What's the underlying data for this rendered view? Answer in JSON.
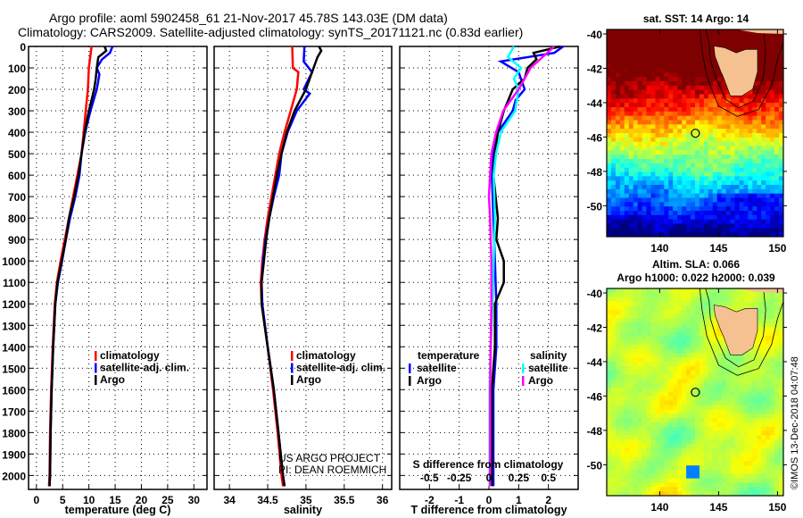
{
  "title_line1": "Argo profile: aoml 5902458_61 21-Nov-2017 45.78S 143.03E (DM data)",
  "title_line2": "Climatology: CARS2009. Satellite-adjusted climatology: synTS_20171121.nc (0.83d earlier)",
  "credit": "©IMOS 13-Dec-2018 04:07:48",
  "project_line1": "US ARGO PROJECT",
  "project_line2": "PI: DEAN ROEMMICH",
  "colors": {
    "climatology": "#ff0000",
    "satellite": "#0000ff",
    "argo": "#000000",
    "sal_satellite": "#00ffff",
    "sal_argo": "#ff00ff",
    "land": "#f5c190"
  },
  "chart_data": [
    {
      "type": "line",
      "name": "temperature",
      "xlabel": "temperature (deg C)",
      "ylabel": "",
      "xlim": [
        -1.5,
        32.5
      ],
      "ylim": [
        2065,
        0
      ],
      "xticks": [
        0,
        5,
        10,
        15,
        20,
        25,
        30
      ],
      "yticks": [
        0,
        100,
        200,
        300,
        400,
        500,
        600,
        700,
        800,
        900,
        1000,
        1100,
        1200,
        1300,
        1400,
        1500,
        1600,
        1700,
        1800,
        1900,
        2000
      ],
      "grid": true,
      "legend": [
        "climatology",
        "satellite-adj. clim.",
        "Argo"
      ],
      "series": [
        {
          "name": "climatology",
          "color": "#ff0000",
          "depth": [
            0,
            100,
            200,
            300,
            400,
            500,
            600,
            700,
            800,
            900,
            1000,
            1100,
            1200,
            1400,
            1600,
            1800,
            2000,
            2050
          ],
          "values": [
            10.5,
            10.0,
            9.8,
            9.4,
            9.0,
            8.6,
            7.8,
            7.0,
            6.2,
            5.4,
            4.6,
            3.9,
            3.5,
            3.1,
            2.8,
            2.6,
            2.5,
            2.4
          ]
        },
        {
          "name": "satellite-adj. clim.",
          "color": "#0000ff",
          "depth": [
            0,
            30,
            60,
            100,
            130,
            200,
            300,
            400,
            500,
            600,
            700,
            800,
            900,
            1000,
            1100,
            1200,
            1400,
            1600,
            1800,
            2000,
            2050
          ],
          "values": [
            14.5,
            14.0,
            12.5,
            11.5,
            12.0,
            11.5,
            10.3,
            9.3,
            8.6,
            8.2,
            7.4,
            6.4,
            5.6,
            4.9,
            4.1,
            3.6,
            3.2,
            2.9,
            2.7,
            2.6,
            2.5
          ]
        },
        {
          "name": "Argo",
          "color": "#000000",
          "depth": [
            0,
            20,
            50,
            100,
            150,
            200,
            250,
            300,
            400,
            500,
            600,
            700,
            800,
            900,
            1000,
            1100,
            1200,
            1400,
            1600,
            1800,
            2000,
            2050
          ],
          "values": [
            13.0,
            13.3,
            11.8,
            11.5,
            11.3,
            11.0,
            10.5,
            10.0,
            9.2,
            8.6,
            8.0,
            7.2,
            6.2,
            5.6,
            4.8,
            4.0,
            3.6,
            3.2,
            2.9,
            2.7,
            2.6,
            2.5
          ]
        }
      ]
    },
    {
      "type": "line",
      "name": "salinity",
      "xlabel": "salinity",
      "xlim": [
        33.8,
        36.12
      ],
      "ylim": [
        2065,
        0
      ],
      "xticks": [
        34,
        34.5,
        35,
        35.5,
        36
      ],
      "grid": true,
      "legend": [
        "climatology",
        "satellite-adj. clim.",
        "Argo"
      ],
      "series": [
        {
          "name": "climatology",
          "color": "#ff0000",
          "depth": [
            0,
            100,
            120,
            200,
            300,
            400,
            500,
            600,
            700,
            800,
            900,
            1000,
            1100,
            1200,
            1400,
            1600,
            1800,
            2000,
            2050
          ],
          "values": [
            34.82,
            34.83,
            34.9,
            34.88,
            34.8,
            34.72,
            34.65,
            34.6,
            34.55,
            34.5,
            34.46,
            34.43,
            34.41,
            34.42,
            34.5,
            34.57,
            34.63,
            34.68,
            34.7
          ]
        },
        {
          "name": "satellite-adj. clim.",
          "color": "#0000ff",
          "depth": [
            0,
            70,
            120,
            200,
            220,
            300,
            400,
            500,
            600,
            700,
            800,
            900,
            1000,
            1100,
            1200,
            1400,
            1600,
            1800,
            2000,
            2050
          ],
          "values": [
            34.98,
            34.97,
            35.08,
            34.97,
            35.05,
            34.88,
            34.76,
            34.68,
            34.65,
            34.58,
            34.52,
            34.47,
            34.44,
            34.42,
            34.43,
            34.5,
            34.58,
            34.64,
            34.7,
            34.72
          ]
        },
        {
          "name": "Argo",
          "color": "#000000",
          "depth": [
            0,
            20,
            50,
            100,
            150,
            200,
            300,
            400,
            500,
            600,
            700,
            800,
            900,
            1000,
            1100,
            1200,
            1400,
            1600,
            1800,
            2000,
            2050
          ],
          "values": [
            35.17,
            35.2,
            35.15,
            35.1,
            35.05,
            35.0,
            34.85,
            34.75,
            34.68,
            34.62,
            34.57,
            34.52,
            34.48,
            34.45,
            34.42,
            34.42,
            34.5,
            34.58,
            34.64,
            34.7,
            34.72
          ]
        }
      ]
    },
    {
      "type": "line",
      "name": "difference",
      "xlabel": "T difference from climatology",
      "x2label": "S difference from climatology",
      "xlim": [
        -3,
        3
      ],
      "x2lim": [
        -0.75,
        0.75
      ],
      "ylim": [
        2065,
        0
      ],
      "xticks": [
        -2,
        -1,
        0,
        1,
        2
      ],
      "x2ticks": [
        "-0.5",
        "-0.25",
        "0",
        "0.25",
        "0.5"
      ],
      "x2tickvals": [
        -0.5,
        -0.25,
        0,
        0.25,
        0.5
      ],
      "grid": true,
      "legend_temperature": {
        "title": "temperature",
        "items": [
          "satellite",
          "Argo"
        ]
      },
      "legend_salinity": {
        "title": "salinity",
        "items": [
          "satellite",
          "Argo"
        ]
      },
      "series": [
        {
          "name": "temperature satellite",
          "axis": "T",
          "color": "#0000ff",
          "depth": [
            0,
            30,
            70,
            120,
            200,
            250,
            300,
            400,
            500,
            600,
            800,
            1000,
            1200,
            1400,
            1600,
            2000,
            2050
          ],
          "values": [
            2.5,
            2.2,
            0.4,
            1.0,
            1.2,
            0.9,
            0.8,
            0.3,
            0.15,
            0.1,
            0.15,
            0.2,
            0.25,
            0.25,
            0.15,
            0.15,
            0.15
          ]
        },
        {
          "name": "temperature Argo",
          "axis": "T",
          "color": "#000000",
          "depth": [
            0,
            30,
            60,
            100,
            150,
            200,
            300,
            400,
            500,
            600,
            800,
            900,
            1000,
            1100,
            1200,
            1400,
            1600,
            2000,
            2050
          ],
          "values": [
            2.4,
            1.5,
            1.6,
            1.3,
            1.2,
            0.8,
            0.5,
            0.3,
            0.2,
            0.15,
            0.3,
            0.25,
            0.5,
            0.5,
            0.2,
            0.2,
            0.1,
            0.1,
            0.1
          ]
        },
        {
          "name": "salinity satellite",
          "axis": "S",
          "color": "#00ffff",
          "depth": [
            0,
            50,
            100,
            150,
            200,
            300,
            400,
            500,
            600,
            800,
            1000,
            1200,
            1400,
            1600,
            2000,
            2050
          ],
          "values": [
            0.21,
            0.16,
            0.27,
            0.21,
            0.25,
            0.22,
            0.1,
            0.06,
            0.04,
            0.05,
            0.04,
            0.03,
            0.015,
            0.005,
            0.005,
            0.005
          ]
        },
        {
          "name": "salinity Argo",
          "axis": "S",
          "color": "#ff00ff",
          "depth": [
            0,
            50,
            100,
            150,
            200,
            300,
            400,
            500,
            600,
            700,
            800,
            1000,
            1200,
            1600,
            2000,
            2050
          ],
          "values": [
            0.55,
            0.45,
            0.35,
            0.3,
            0.25,
            0.12,
            0.06,
            0.02,
            0.01,
            0,
            0.01,
            0.02,
            0.02,
            0.01,
            0.01,
            0.01
          ]
        }
      ]
    },
    {
      "type": "heatmap",
      "name": "sst-map",
      "title": "sat. SST: 14 Argo: 14",
      "xlim": [
        135.5,
        150.5
      ],
      "ylim": [
        -51.8,
        -39.74
      ],
      "xticks": [
        140,
        145,
        150
      ],
      "yticks": [
        -40,
        -42,
        -44,
        -46,
        -48,
        -50
      ],
      "marker": {
        "lon": 143.03,
        "lat": -45.78
      }
    },
    {
      "type": "heatmap",
      "name": "sla-map",
      "title_line1": "Altim. SLA: 0.066",
      "title_line2": "Argo h1000: 0.022 h2000: 0.039",
      "xlim": [
        135.5,
        150.5
      ],
      "ylim": [
        -51.8,
        -39.74
      ],
      "xticks": [
        140,
        145,
        150
      ],
      "yticks": [
        -40,
        -42,
        -44,
        -46,
        -48,
        -50
      ],
      "marker": {
        "lon": 143.03,
        "lat": -45.78
      }
    }
  ]
}
